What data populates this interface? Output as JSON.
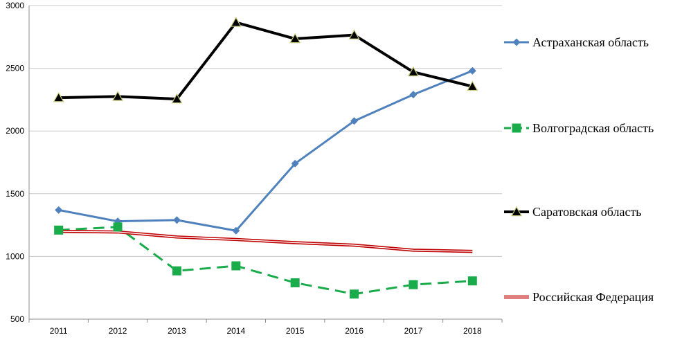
{
  "chart_data": {
    "type": "line",
    "title": "",
    "xlabel": "",
    "ylabel": "",
    "x": [
      "2011",
      "2012",
      "2013",
      "2014",
      "2015",
      "2016",
      "2017",
      "2018"
    ],
    "ylim": [
      500,
      3000
    ],
    "yticks": [
      500,
      1000,
      1500,
      2000,
      2500,
      3000
    ],
    "grid": "horizontal",
    "legend_position": "right",
    "series": [
      {
        "name": "Астраханская  область",
        "color": "#4F81BD",
        "marker": "diamond",
        "line_style": "solid",
        "values": [
          1370,
          1280,
          1290,
          1205,
          1740,
          2080,
          2290,
          2480
        ]
      },
      {
        "name": "Волгоградская  область",
        "color": "#1AAB4B",
        "marker": "square",
        "line_style": "dashed",
        "values": [
          1210,
          1235,
          885,
          925,
          790,
          700,
          775,
          805
        ]
      },
      {
        "name": "Саратовская  область",
        "color": "#000000",
        "marker": "triangle",
        "line_style": "solid",
        "values": [
          2265,
          2275,
          2255,
          2865,
          2735,
          2765,
          2470,
          2355
        ]
      },
      {
        "name": "Российская  Федерация",
        "color": "#C00000",
        "marker": "none",
        "line_style": "double",
        "values": [
          1200,
          1195,
          1155,
          1135,
          1110,
          1090,
          1050,
          1040
        ]
      }
    ]
  }
}
